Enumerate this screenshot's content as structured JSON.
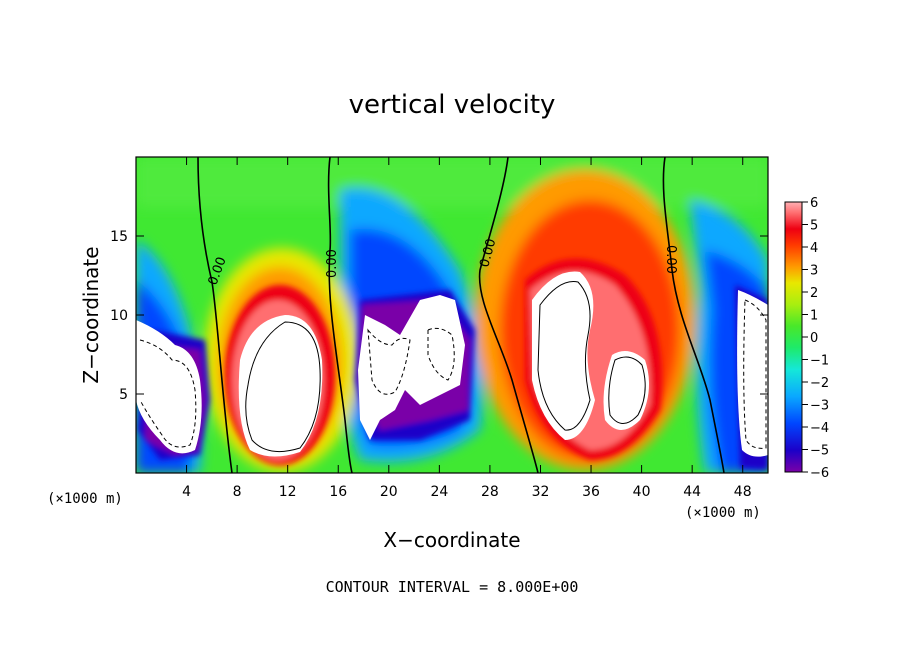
{
  "chart_data": {
    "type": "heatmap",
    "title": "vertical velocity",
    "xlabel": "X−coordinate",
    "ylabel": "Z−coordinate",
    "x_unit": "(×1000 m)",
    "xlim": [
      0,
      50
    ],
    "ylim": [
      0,
      20
    ],
    "x_ticks": [
      "4",
      "8",
      "12",
      "16",
      "20",
      "24",
      "28",
      "32",
      "36",
      "40",
      "44",
      "48"
    ],
    "y_ticks": [
      "5",
      "10",
      "15"
    ],
    "colorbar": {
      "min": -6,
      "max": 6,
      "labels": [
        "6",
        "5",
        "4",
        "3",
        "2",
        "1",
        "0",
        "−1",
        "−2",
        "−3",
        "−4",
        "−5",
        "−6"
      ]
    },
    "contour_labels": [
      "0.00",
      "0.00",
      "0.00",
      "0.00"
    ],
    "footer": "CONTOUR INTERVAL = 8.000E+00"
  }
}
